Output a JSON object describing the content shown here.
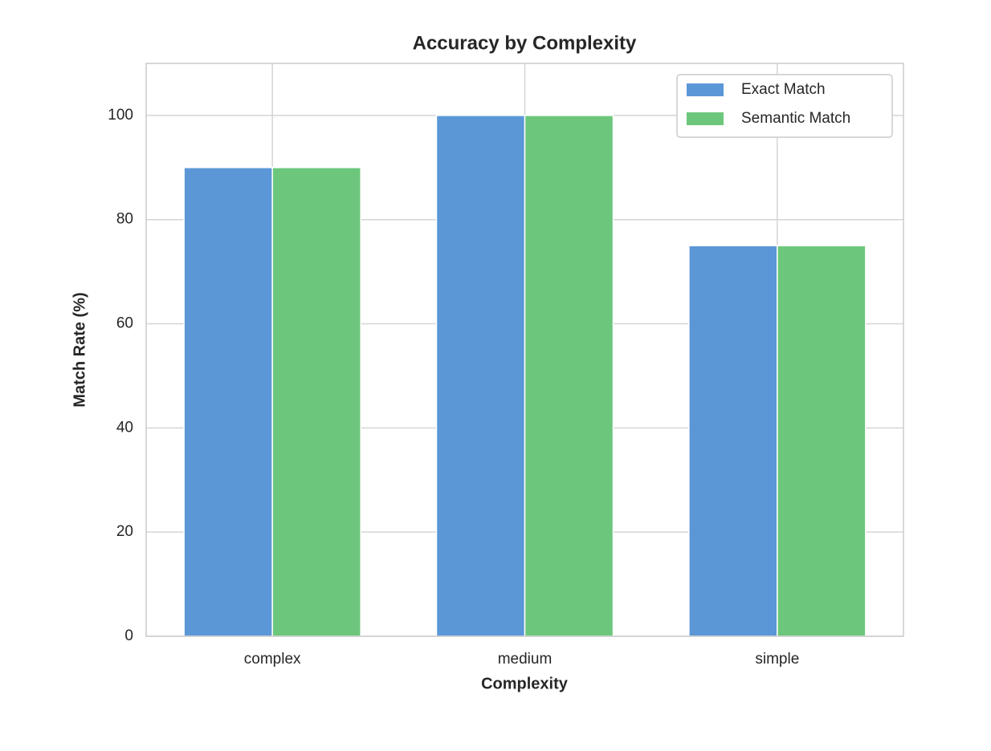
{
  "chart_data": {
    "type": "bar",
    "title": "Accuracy by Complexity",
    "x_label": "Complexity",
    "y_label": "Match Rate (%)",
    "categories": [
      "complex",
      "medium",
      "simple"
    ],
    "series": [
      {
        "name": "Exact Match",
        "color": "#5b97d6",
        "values": [
          90,
          100,
          75
        ]
      },
      {
        "name": "Semantic Match",
        "color": "#6cc77c",
        "values": [
          90,
          100,
          75
        ]
      }
    ],
    "ylim": [
      0,
      110
    ],
    "yticks": [
      0,
      20,
      40,
      60,
      80,
      100
    ],
    "grid": true,
    "legend": "upper right"
  }
}
